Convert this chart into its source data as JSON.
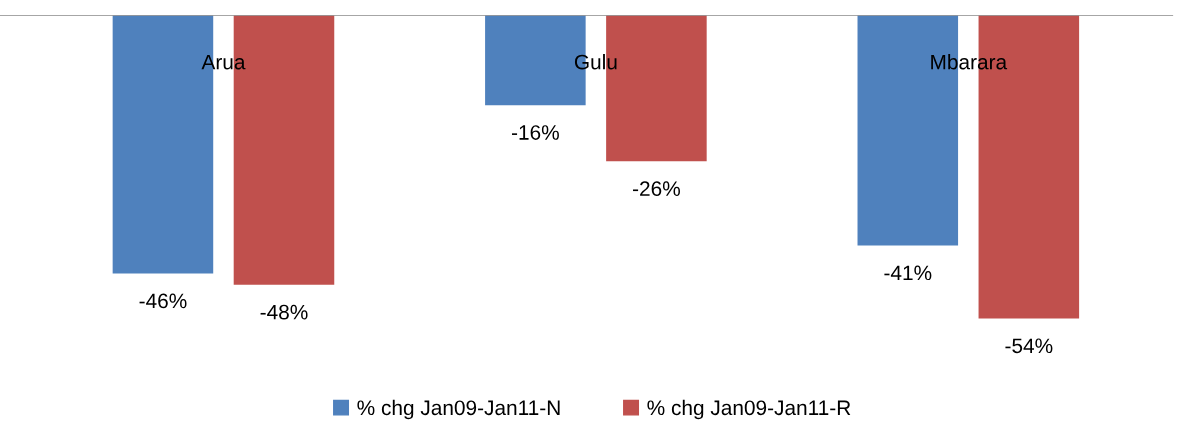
{
  "chart_data": {
    "type": "bar",
    "categories": [
      "Arua",
      "Gulu",
      "Mbarara"
    ],
    "series": [
      {
        "name": "% chg Jan09-Jan11-N",
        "color": "#4f81bd",
        "values": [
          -46,
          -16,
          -41
        ],
        "value_labels": [
          "-46%",
          "-16%",
          "-41%"
        ]
      },
      {
        "name": "% chg Jan09-Jan11-R",
        "color": "#c0504d",
        "values": [
          -48,
          -26,
          -54
        ],
        "value_labels": [
          "-48%",
          "-26%",
          "-54%"
        ]
      }
    ],
    "legend": "bottom"
  }
}
